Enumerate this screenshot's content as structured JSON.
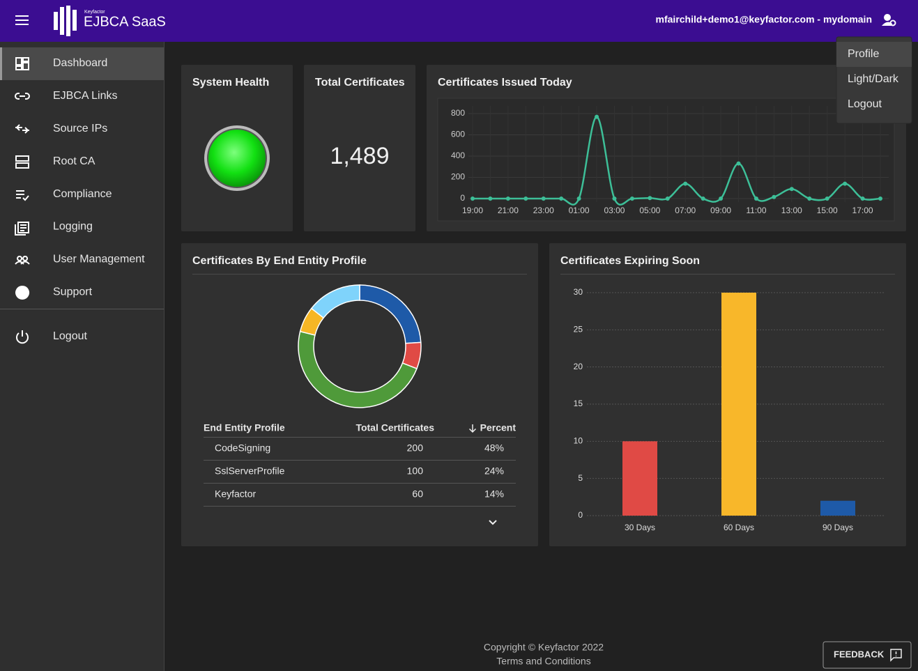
{
  "header": {
    "brand_small": "Keyfactor",
    "brand": "EJBCA SaaS",
    "user": "mfairchild+demo1@keyfactor.com - mydomain"
  },
  "user_menu": [
    "Profile",
    "Light/Dark",
    "Logout"
  ],
  "nav": [
    "Dashboard",
    "EJBCA Links",
    "Source IPs",
    "Root CA",
    "Compliance",
    "Logging",
    "User Management",
    "Support"
  ],
  "nav_logout": "Logout",
  "cards": {
    "system_health": {
      "title": "System Health"
    },
    "total_certificates": {
      "title": "Total Certificates",
      "value": "1,489"
    }
  },
  "chart_data": [
    {
      "type": "line",
      "title": "Certificates Issued Today",
      "categories": [
        "19:00",
        null,
        "21:00",
        null,
        "23:00",
        null,
        "01:00",
        null,
        "03:00",
        null,
        "05:00",
        null,
        "07:00",
        null,
        "09:00",
        null,
        "11:00",
        null,
        "13:00",
        null,
        "15:00",
        null,
        "17:00",
        null
      ],
      "values": [
        0,
        0,
        0,
        0,
        0,
        0,
        0,
        770,
        0,
        0,
        5,
        0,
        140,
        0,
        0,
        330,
        0,
        15,
        90,
        0,
        0,
        140,
        0,
        0
      ],
      "color": "#3dbf98",
      "ylim": [
        0,
        800
      ],
      "yticks": [
        0,
        200,
        400,
        600,
        800
      ],
      "grid": true
    },
    {
      "type": "pie",
      "title": "Certificates By End Entity Profile",
      "values": [
        100,
        29,
        200,
        28,
        60
      ],
      "colors": [
        "#1e5aa8",
        "#e04a45",
        "#4f9a3a",
        "#f6b625",
        "#7fd3fb"
      ],
      "donut": true
    },
    {
      "type": "bar",
      "title": "Certificates Expiring Soon",
      "categories": [
        "30 Days",
        "60 Days",
        "90 Days"
      ],
      "values": [
        10,
        30,
        2
      ],
      "colors": [
        "#e04a45",
        "#f8b72a",
        "#1e5aa8"
      ],
      "ylim": [
        0,
        30
      ],
      "yticks": [
        0,
        5,
        10,
        15,
        20,
        25,
        30
      ],
      "grid": true
    }
  ],
  "table": {
    "header": [
      "End Entity Profile",
      "Total Certificates",
      "Percent"
    ],
    "rows": [
      [
        "CodeSigning",
        200,
        "48%"
      ],
      [
        "SslServerProfile",
        100,
        "24%"
      ],
      [
        "Keyfactor",
        60,
        "14%"
      ]
    ]
  },
  "footer": {
    "copyright": "Copyright © Keyfactor 2022",
    "terms": "Terms and Conditions",
    "feedback": "FEEDBACK"
  }
}
